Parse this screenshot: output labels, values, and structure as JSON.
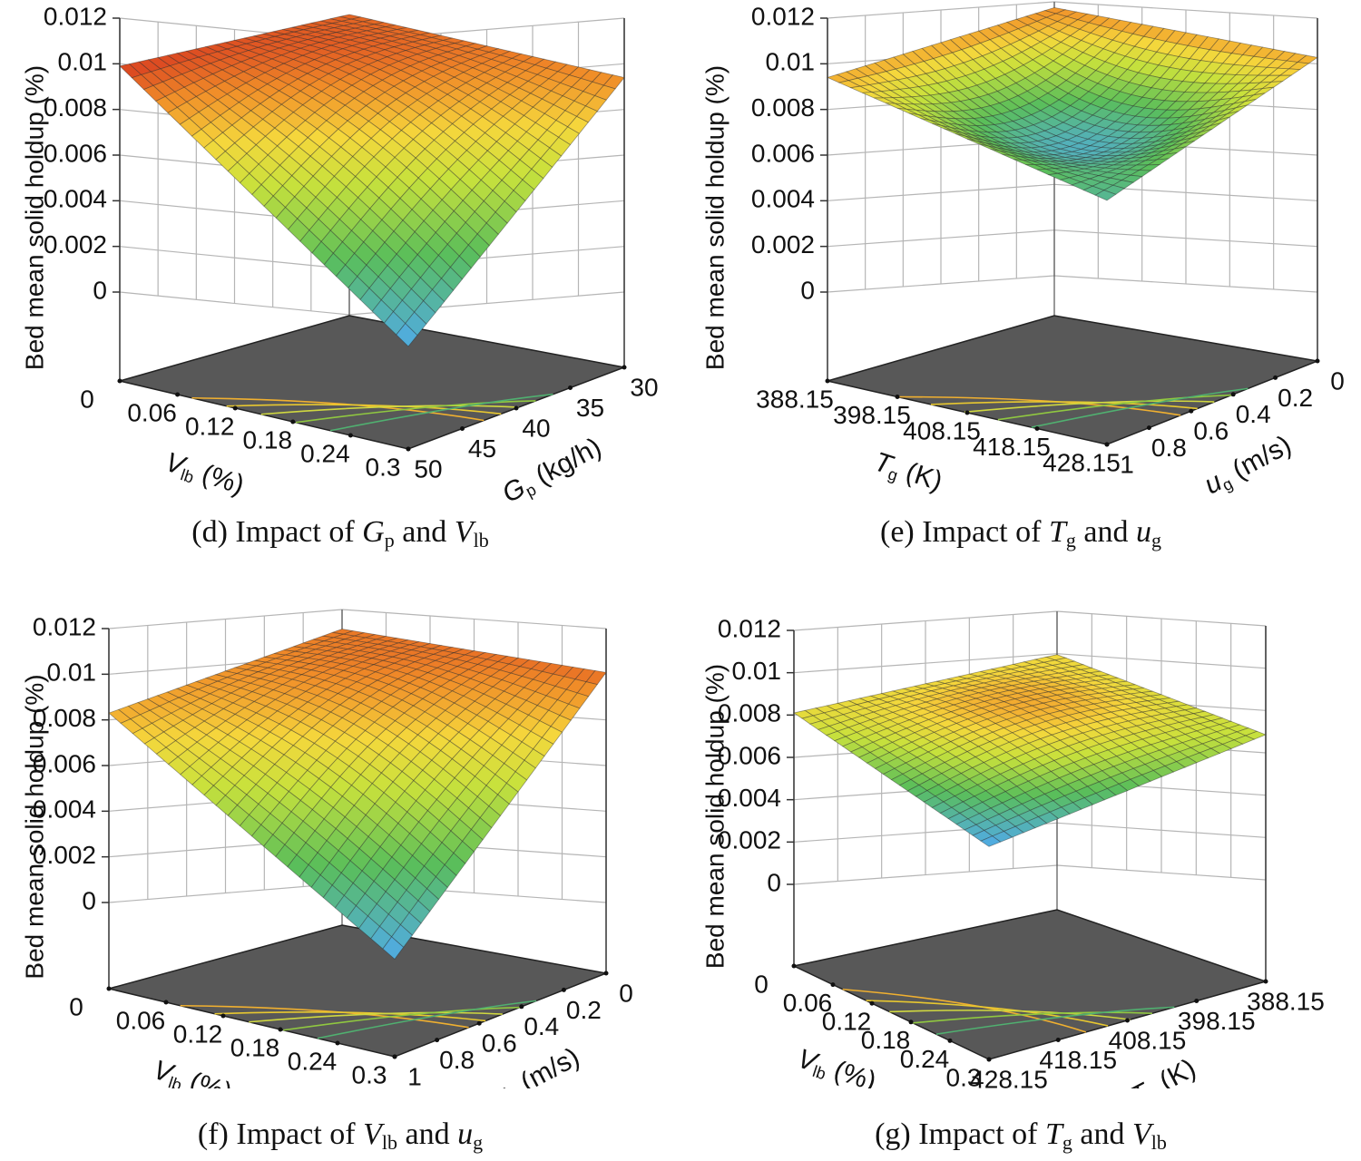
{
  "panels": [
    {
      "caption": {
        "prefix": "(d) Impact of ",
        "var1": "G",
        "sub1": "p",
        "mid": " and ",
        "var2": "V",
        "sub2": "lb"
      },
      "chart_data": {
        "type": "surface3d",
        "zlabel": "Bed mean solid holdup (%)",
        "zticks": [
          "0",
          "0.002",
          "0.004",
          "0.006",
          "0.008",
          "0.01",
          "0.012"
        ],
        "zlim": [
          0,
          0.012
        ],
        "x_axis": {
          "label": "V",
          "label_sub": "lb",
          "unit": " (%)",
          "ticks": [
            "0",
            "0.06",
            "0.12",
            "0.18",
            "0.24",
            "0.3"
          ]
        },
        "y_axis": {
          "label": "G",
          "label_sub": "p",
          "unit": " (kg/h)",
          "ticks": [
            "50",
            "45",
            "40",
            "35",
            "30"
          ]
        },
        "corner_values": {
          "left": 0.0099,
          "back": 0.0093,
          "right": 0.0088,
          "front": 0.0006
        },
        "min_value": 0.0006,
        "max_value": 0.0102
      }
    },
    {
      "caption": {
        "prefix": "(e) Impact of ",
        "var1": "T",
        "sub1": "g",
        "mid": " and ",
        "var2": "u",
        "sub2": "g"
      },
      "chart_data": {
        "type": "surface3d",
        "zlabel": "Bed mean solid holdup (%)",
        "zticks": [
          "0",
          "0.002",
          "0.004",
          "0.006",
          "0.008",
          "0.01",
          "0.012"
        ],
        "zlim": [
          0,
          0.012
        ],
        "x_axis": {
          "label": "T",
          "label_sub": "g",
          "unit": " (K)",
          "ticks": [
            "388.15",
            "398.15",
            "408.15",
            "418.15",
            "428.15"
          ]
        },
        "y_axis": {
          "label": "u",
          "label_sub": "g",
          "unit": " (m/s)",
          "ticks": [
            "1",
            "0.8",
            "0.6",
            "0.4",
            "0.2",
            "0"
          ]
        },
        "corner_values": {
          "left": 0.0094,
          "back": 0.0096,
          "right": 0.0094,
          "front": 0.0068
        },
        "min_value": 0.0061,
        "max_value": 0.0103
      }
    },
    {
      "caption": {
        "prefix": "(f) Impact of ",
        "var1": "V",
        "sub1": "lb",
        "mid": " and ",
        "var2": "u",
        "sub2": "g"
      },
      "chart_data": {
        "type": "surface3d",
        "zlabel": "Bed mean solid holdup (%)",
        "zticks": [
          "0",
          "0.002",
          "0.004",
          "0.006",
          "0.008",
          "0.01",
          "0.012"
        ],
        "zlim": [
          0,
          0.012
        ],
        "x_axis": {
          "label": "V",
          "label_sub": "lb",
          "unit": " (%)",
          "ticks": [
            "0",
            "0.06",
            "0.12",
            "0.18",
            "0.24",
            "0.3"
          ]
        },
        "y_axis": {
          "label": "u",
          "label_sub": "g",
          "unit": " (m/s)",
          "ticks": [
            "1",
            "0.8",
            "0.6",
            "0.4",
            "0.2",
            "0"
          ]
        },
        "corner_values": {
          "left": 0.0083,
          "back": 0.0092,
          "right": 0.0094,
          "front": 0.0005
        },
        "min_value": 0.0005,
        "max_value": 0.0104
      }
    },
    {
      "caption": {
        "prefix": "(g) Impact of ",
        "var1": "T",
        "sub1": "g",
        "mid": " and ",
        "var2": "V",
        "sub2": "lb"
      },
      "chart_data": {
        "type": "surface3d",
        "zlabel": "Bed mean solid holdup (%)",
        "zticks": [
          "0",
          "0.002",
          "0.004",
          "0.006",
          "0.008",
          "0.01",
          "0.012"
        ],
        "zlim": [
          0,
          0.012
        ],
        "x_axis": {
          "label": "V",
          "label_sub": "lb",
          "unit": " (%)",
          "ticks": [
            "0",
            "0.06",
            "0.12",
            "0.18",
            "0.24",
            "0.3"
          ]
        },
        "y_axis": {
          "label": "T",
          "label_sub": "g",
          "unit": " (K)",
          "ticks": [
            "428.15",
            "418.15",
            "408.15",
            "398.15",
            "388.15"
          ]
        },
        "corner_values": {
          "left": 0.0081,
          "back": 0.0082,
          "right": 0.0078,
          "front": 0.0062
        },
        "min_value": 0.0062,
        "max_value": 0.0091
      }
    }
  ]
}
